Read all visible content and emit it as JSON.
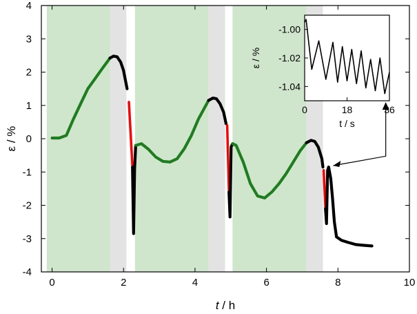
{
  "chart_data": [
    {
      "type": "line",
      "xlabel_italic": "t",
      "xlabel_unit": " / h",
      "ylabel": "ε / %",
      "xlim": [
        -0.3,
        10
      ],
      "ylim": [
        -4,
        4
      ],
      "xticks": [
        0,
        2,
        4,
        6,
        8,
        10
      ],
      "yticks": [
        -4,
        -3,
        -2,
        -1,
        0,
        1,
        2,
        3,
        4
      ],
      "grid": false,
      "shaded_regions": [
        {
          "kind": "green",
          "color": "#cfe6cc",
          "x": [
            -0.15,
            1.62
          ]
        },
        {
          "kind": "gray",
          "color": "#e3e3e3",
          "x": [
            1.62,
            2.08
          ]
        },
        {
          "kind": "green",
          "color": "#cfe6cc",
          "x": [
            2.32,
            4.38
          ]
        },
        {
          "kind": "gray",
          "color": "#e3e3e3",
          "x": [
            4.38,
            4.84
          ]
        },
        {
          "kind": "green",
          "color": "#cfe6cc",
          "x": [
            5.05,
            7.12
          ]
        },
        {
          "kind": "gray",
          "color": "#e3e3e3",
          "x": [
            7.12,
            7.58
          ]
        }
      ],
      "series": [
        {
          "color": "#1e7d1e",
          "x": [
            0,
            0.2,
            0.4,
            0.6,
            0.8,
            1.0,
            1.2,
            1.4,
            1.62
          ],
          "y": [
            0.02,
            0.02,
            0.1,
            0.6,
            1.05,
            1.5,
            1.8,
            2.1,
            2.42
          ]
        },
        {
          "color": "#000000",
          "x": [
            1.62,
            1.72,
            1.82,
            1.92,
            2.0,
            2.1
          ],
          "y": [
            2.42,
            2.48,
            2.46,
            2.3,
            2.05,
            1.5
          ]
        },
        {
          "color": "#ff0000",
          "x": [
            2.15,
            2.25
          ],
          "y": [
            1.1,
            -0.85
          ]
        },
        {
          "color": "#000000",
          "x": [
            2.25,
            2.28,
            2.31,
            2.34
          ],
          "y": [
            -0.85,
            -2.85,
            -0.9,
            -0.2
          ]
        },
        {
          "color": "#1e7d1e",
          "x": [
            2.34,
            2.5,
            2.7,
            2.9,
            3.1,
            3.3,
            3.5,
            3.7,
            3.9,
            4.1,
            4.38
          ],
          "y": [
            -0.2,
            -0.15,
            -0.32,
            -0.55,
            -0.68,
            -0.7,
            -0.6,
            -0.3,
            0.1,
            0.6,
            1.15
          ]
        },
        {
          "color": "#000000",
          "x": [
            4.38,
            4.5,
            4.6,
            4.7,
            4.8,
            4.87
          ],
          "y": [
            1.15,
            1.22,
            1.2,
            1.05,
            0.8,
            0.45
          ]
        },
        {
          "color": "#ff0000",
          "x": [
            4.9,
            4.95
          ],
          "y": [
            0.4,
            -1.6
          ]
        },
        {
          "color": "#000000",
          "x": [
            4.95,
            4.98,
            5.01,
            5.05
          ],
          "y": [
            -1.6,
            -2.35,
            -0.25,
            -0.15
          ]
        },
        {
          "color": "#1e7d1e",
          "x": [
            5.05,
            5.15,
            5.35,
            5.55,
            5.75,
            5.95,
            6.15,
            6.35,
            6.55,
            6.75,
            6.95,
            7.12
          ],
          "y": [
            -0.15,
            -0.2,
            -0.7,
            -1.35,
            -1.72,
            -1.78,
            -1.6,
            -1.35,
            -1.05,
            -0.7,
            -0.35,
            -0.12
          ]
        },
        {
          "color": "#000000",
          "x": [
            7.12,
            7.25,
            7.35,
            7.45,
            7.55,
            7.58
          ],
          "y": [
            -0.12,
            -0.05,
            -0.08,
            -0.25,
            -0.6,
            -0.85
          ]
        },
        {
          "color": "#ff0000",
          "x": [
            7.6,
            7.65
          ],
          "y": [
            -0.95,
            -2.1
          ]
        },
        {
          "color": "#000000",
          "x": [
            7.65,
            7.68,
            7.71,
            7.74,
            7.8,
            7.85,
            7.9,
            7.96,
            8.1,
            8.3,
            8.5,
            8.7,
            8.95
          ],
          "y": [
            -2.1,
            -2.55,
            -0.95,
            -0.85,
            -1.2,
            -1.8,
            -2.5,
            -2.95,
            -3.05,
            -3.12,
            -3.18,
            -3.2,
            -3.22
          ]
        }
      ],
      "annotation": {
        "from": [
          7.75,
          -0.85
        ],
        "to_inset": [
          28,
          -1.043
        ]
      }
    },
    {
      "type": "line",
      "xlabel": "t / s",
      "ylabel": "ε / %",
      "xlim": [
        0,
        36
      ],
      "ylim": [
        -1.05,
        -0.99
      ],
      "xticks": [
        0,
        18,
        36
      ],
      "yticks": [
        -1.04,
        -1.02,
        -1.0
      ],
      "ytick_labels": [
        "-1.04",
        "-1.02",
        "-1.00"
      ],
      "series": [
        {
          "color": "#000000",
          "x": [
            0,
            0.6,
            3,
            6,
            9,
            12,
            14,
            16,
            18,
            20,
            22,
            24,
            26,
            28,
            30,
            32,
            34,
            36
          ],
          "y": [
            -0.995,
            -0.993,
            -1.028,
            -1.008,
            -1.035,
            -1.009,
            -1.037,
            -1.012,
            -1.036,
            -1.014,
            -1.038,
            -1.015,
            -1.041,
            -1.021,
            -1.043,
            -1.02,
            -1.045,
            -1.03
          ]
        }
      ]
    }
  ]
}
